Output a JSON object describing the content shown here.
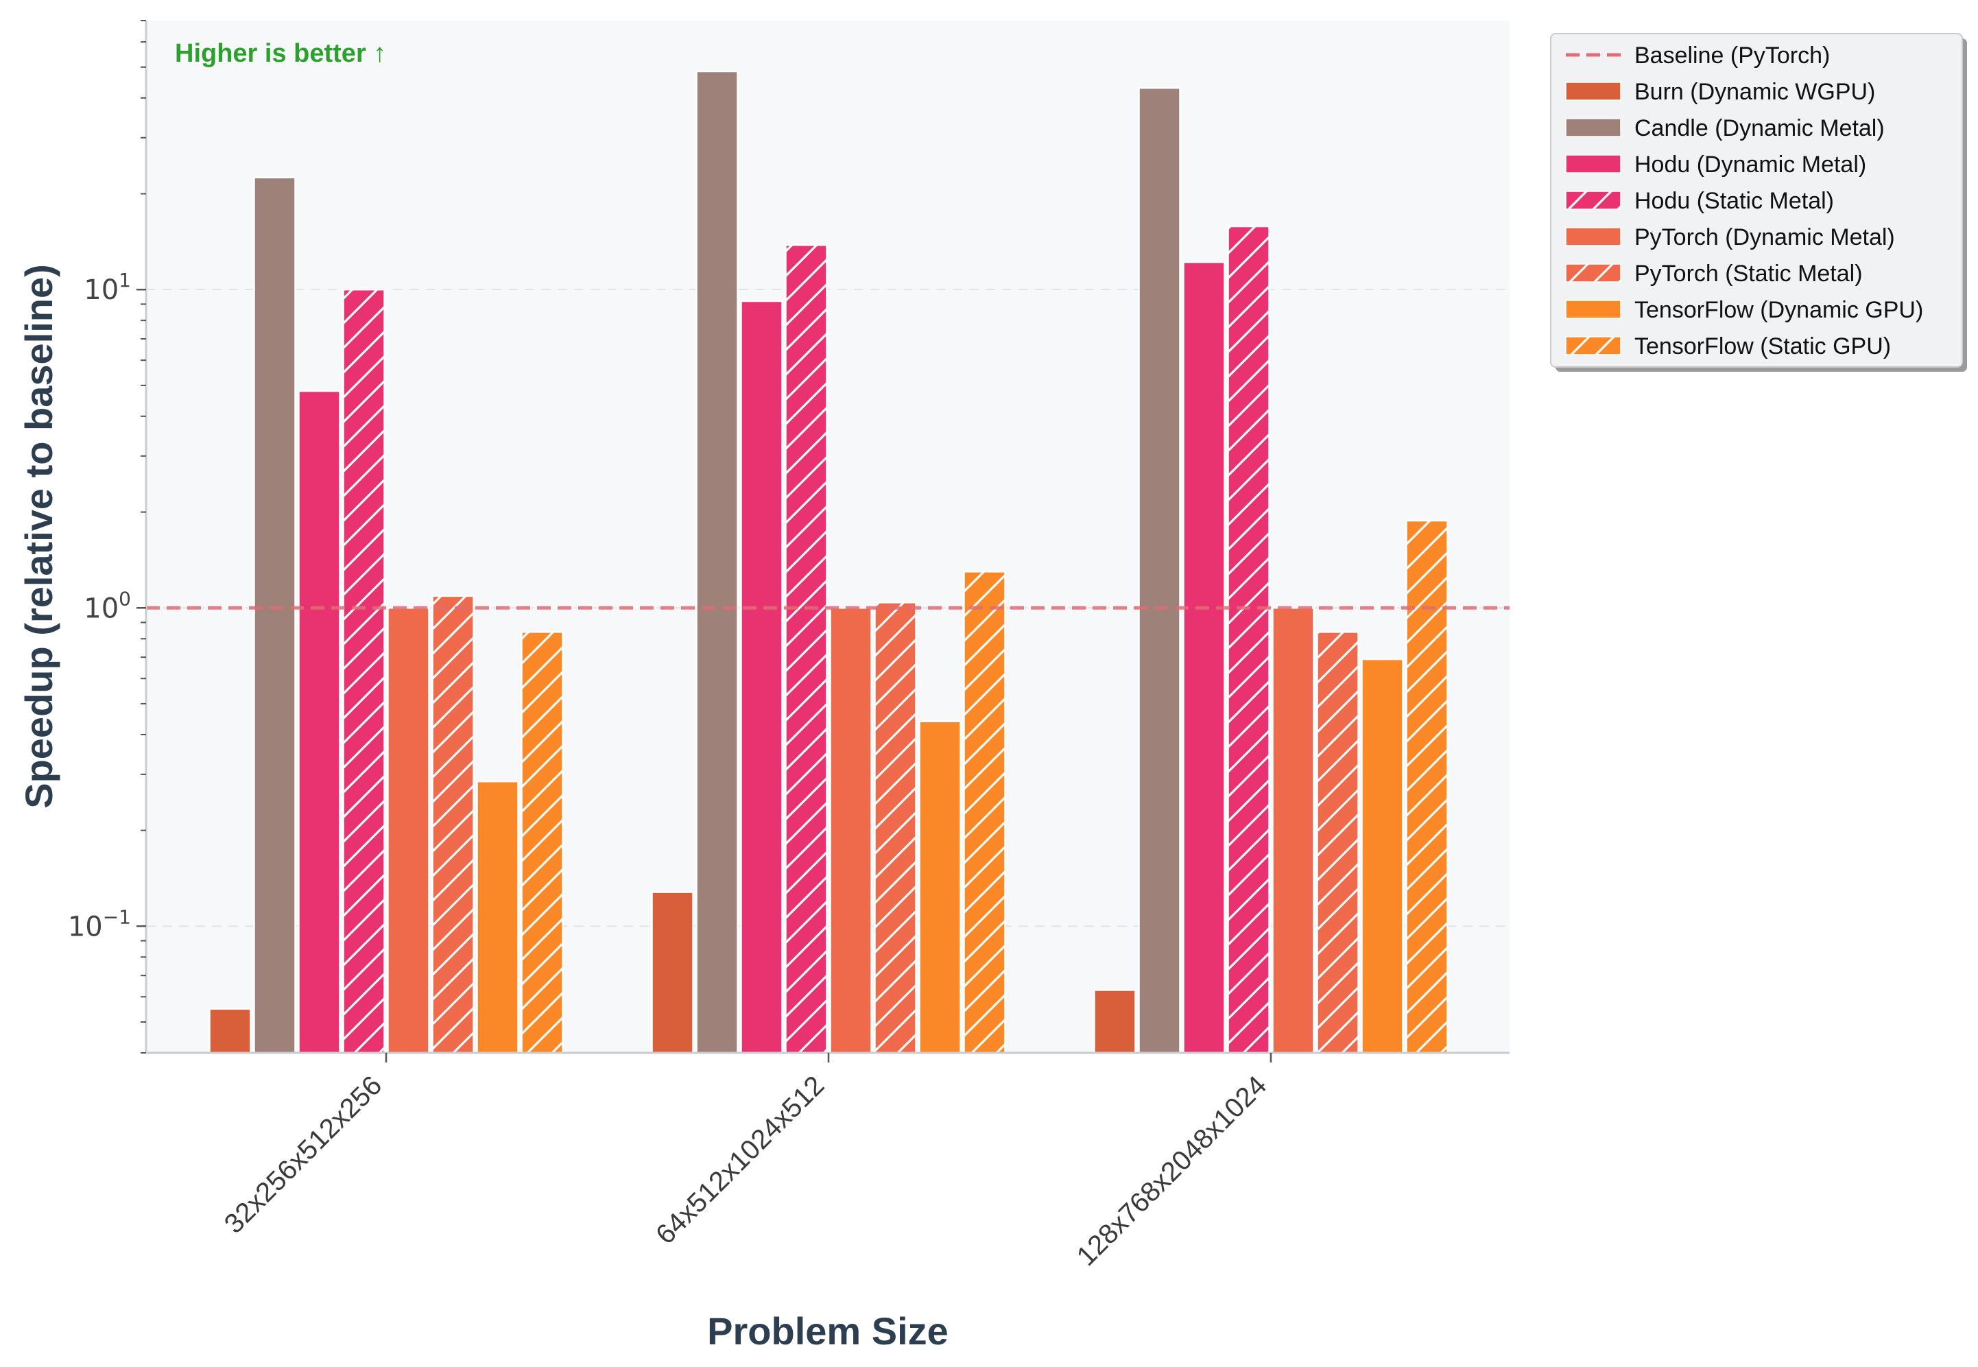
{
  "chart_data": {
    "type": "bar",
    "title": "",
    "xlabel": "Problem Size",
    "ylabel": "Speedup (relative to baseline)",
    "yscale": "log",
    "ylim": [
      0.04,
      70
    ],
    "yticks": [
      {
        "value": 10,
        "base": "10",
        "exp": "1"
      },
      {
        "value": 1,
        "base": "10",
        "exp": "0"
      },
      {
        "value": 0.1,
        "base": "10",
        "exp": "−1"
      }
    ],
    "grid": "y-dashed",
    "categories": [
      "32x256x512x256",
      "64x512x1024x512",
      "128x768x2048x1024"
    ],
    "baseline": {
      "name": "Baseline (PyTorch)",
      "value": 1.0,
      "color": "#e06c75"
    },
    "annotation": "Higher is better ↑",
    "legend_position": "outside-top-right",
    "series": [
      {
        "name": "Burn (Dynamic WGPU)",
        "color": "#d95f3b",
        "hatch": false,
        "values": [
          0.055,
          0.128,
          0.063
        ]
      },
      {
        "name": "Candle (Dynamic Metal)",
        "color": "#9e8279",
        "hatch": false,
        "values": [
          22.5,
          48.5,
          43.0
        ]
      },
      {
        "name": "Hodu (Dynamic Metal)",
        "color": "#e83370",
        "hatch": false,
        "values": [
          4.8,
          9.2,
          12.2
        ]
      },
      {
        "name": "Hodu (Static Metal)",
        "color": "#e83370",
        "hatch": true,
        "values": [
          10.0,
          13.8,
          15.8
        ]
      },
      {
        "name": "PyTorch (Dynamic Metal)",
        "color": "#ef694b",
        "hatch": false,
        "values": [
          1.0,
          1.0,
          1.0
        ]
      },
      {
        "name": "PyTorch (Static Metal)",
        "color": "#ef694b",
        "hatch": true,
        "values": [
          1.09,
          1.04,
          0.84
        ]
      },
      {
        "name": "TensorFlow (Dynamic GPU)",
        "color": "#fb8827",
        "hatch": false,
        "values": [
          0.285,
          0.44,
          0.69
        ]
      },
      {
        "name": "TensorFlow (Static GPU)",
        "color": "#fb8827",
        "hatch": true,
        "values": [
          0.84,
          1.3,
          1.88
        ]
      }
    ]
  }
}
